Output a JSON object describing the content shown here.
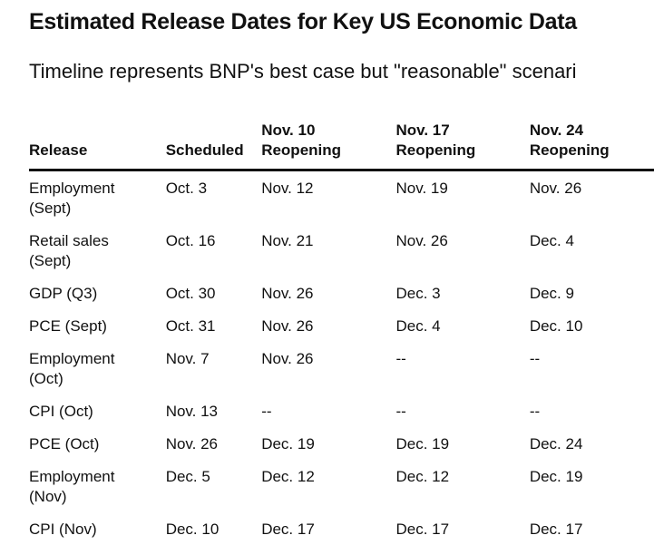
{
  "header": {
    "title": "Estimated Release Dates for Key US Economic Data",
    "subtitle": "Timeline represents BNP's best case but \"reasonable\" scenari"
  },
  "table": {
    "columns": [
      "Release",
      "Scheduled",
      "Nov. 10 Reopening",
      "Nov. 17 Reopening",
      "Nov. 24 Reopening"
    ],
    "rows": [
      [
        "Employment (Sept)",
        "Oct. 3",
        "Nov. 12",
        "Nov. 19",
        "Nov. 26"
      ],
      [
        "Retail sales (Sept)",
        "Oct. 16",
        "Nov. 21",
        "Nov. 26",
        "Dec. 4"
      ],
      [
        "GDP (Q3)",
        "Oct. 30",
        "Nov. 26",
        "Dec. 3",
        "Dec. 9"
      ],
      [
        "PCE (Sept)",
        "Oct. 31",
        "Nov. 26",
        "Dec. 4",
        "Dec. 10"
      ],
      [
        "Employment (Oct)",
        "Nov. 7",
        "Nov. 26",
        "--",
        "--"
      ],
      [
        "CPI (Oct)",
        "Nov. 13",
        "--",
        "--",
        "--"
      ],
      [
        "PCE (Oct)",
        "Nov. 26",
        "Dec. 19",
        "Dec. 19",
        "Dec. 24"
      ],
      [
        "Employment (Nov)",
        "Dec. 5",
        "Dec. 12",
        "Dec. 12",
        "Dec. 19"
      ],
      [
        "CPI (Nov)",
        "Dec. 10",
        "Dec. 17",
        "Dec. 17",
        "Dec. 17"
      ]
    ]
  }
}
